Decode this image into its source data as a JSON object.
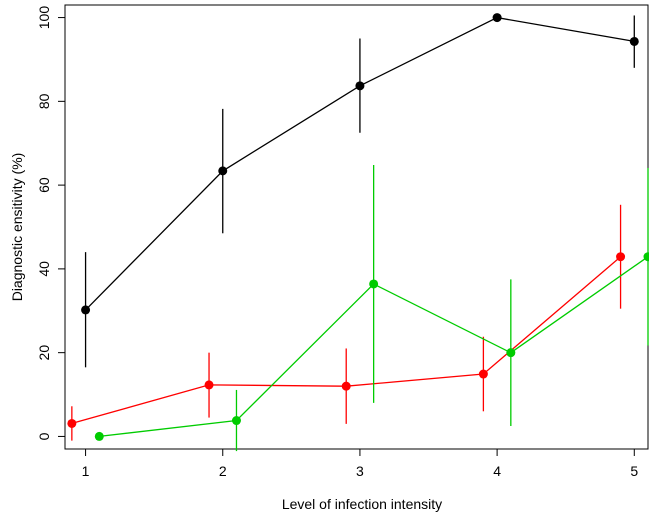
{
  "chart_data": {
    "type": "line",
    "title": "",
    "xlabel": "Level of infection intensity",
    "ylabel": "Diagnostic ensitivity (%)",
    "xlim": [
      0.85,
      5.1
    ],
    "ylim": [
      -3,
      103
    ],
    "xticks": [
      "1",
      "2",
      "3",
      "4",
      "5"
    ],
    "yticks": [
      "0",
      "20",
      "40",
      "60",
      "80",
      "100"
    ],
    "grid": false,
    "legend": "none",
    "series": [
      {
        "color": "#000000",
        "x": [
          1,
          2,
          3,
          4,
          5
        ],
        "y": [
          30.2,
          63.4,
          83.7,
          100,
          94.3
        ],
        "lower": [
          16.5,
          48.5,
          72.5,
          100,
          88.0
        ],
        "upper": [
          44.0,
          78.2,
          95.0,
          100,
          100.5
        ]
      },
      {
        "color": "#ff0000",
        "x": [
          0.9,
          1.9,
          2.9,
          3.9,
          4.9
        ],
        "y": [
          3.1,
          12.3,
          12.0,
          14.9,
          42.9
        ],
        "lower": [
          -1.0,
          4.5,
          3.0,
          6.0,
          30.5
        ],
        "upper": [
          7.2,
          20.0,
          21.0,
          23.8,
          55.3
        ]
      },
      {
        "color": "#00cc00",
        "x": [
          1.1,
          2.1,
          3.1,
          4.1,
          5.1
        ],
        "y": [
          0,
          3.8,
          36.4,
          20.0,
          42.9
        ],
        "lower": [
          0,
          -3.5,
          8.0,
          2.5,
          21.7
        ],
        "upper": [
          0,
          11.1,
          64.8,
          37.5,
          64.1
        ]
      }
    ]
  }
}
